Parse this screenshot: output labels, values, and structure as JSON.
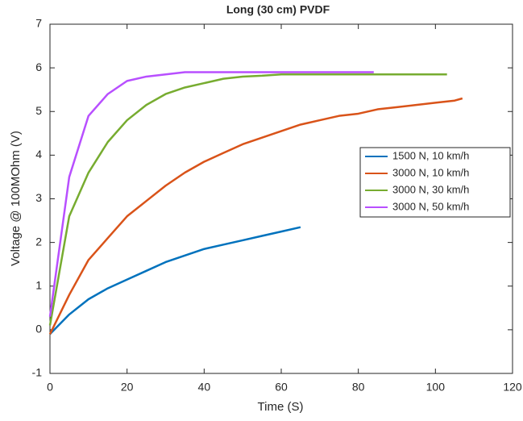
{
  "chart_data": {
    "type": "line",
    "title": "Long (30 cm) PVDF",
    "x_label": "Time (S)",
    "y_label": "Voltage @ 100MOhm (V)",
    "xlim": [
      0,
      120
    ],
    "xticks": [
      0,
      20,
      40,
      60,
      80,
      100,
      120
    ],
    "ylim": [
      -1,
      7
    ],
    "yticks": [
      -1,
      0,
      1,
      2,
      3,
      4,
      5,
      6,
      7
    ],
    "grid": false,
    "legend_position": "east",
    "series": [
      {
        "name": "1500 N, 10 km/h",
        "color": "#0072bd",
        "x": [
          0,
          5,
          10,
          15,
          20,
          25,
          30,
          35,
          40,
          45,
          50,
          55,
          60,
          65
        ],
        "values": [
          -0.1,
          0.35,
          0.7,
          0.95,
          1.15,
          1.35,
          1.55,
          1.7,
          1.85,
          1.95,
          2.05,
          2.15,
          2.25,
          2.35
        ]
      },
      {
        "name": "3000 N, 10 km/h",
        "color": "#d95319",
        "x": [
          0,
          5,
          10,
          15,
          20,
          25,
          30,
          35,
          40,
          45,
          50,
          55,
          60,
          65,
          70,
          75,
          80,
          85,
          90,
          95,
          100,
          105,
          107
        ],
        "values": [
          -0.1,
          0.8,
          1.6,
          2.1,
          2.6,
          2.95,
          3.3,
          3.6,
          3.85,
          4.05,
          4.25,
          4.4,
          4.55,
          4.7,
          4.8,
          4.9,
          4.95,
          5.05,
          5.1,
          5.15,
          5.2,
          5.25,
          5.3
        ]
      },
      {
        "name": "3000 N, 30 km/h",
        "color": "#77ac30",
        "x": [
          0,
          5,
          10,
          15,
          20,
          25,
          30,
          35,
          40,
          45,
          50,
          55,
          60,
          70,
          80,
          90,
          100,
          103
        ],
        "values": [
          0.1,
          2.6,
          3.6,
          4.3,
          4.8,
          5.15,
          5.4,
          5.55,
          5.65,
          5.75,
          5.8,
          5.82,
          5.85,
          5.85,
          5.85,
          5.85,
          5.85,
          5.85
        ]
      },
      {
        "name": "3000 N, 50 km/h",
        "color": "#b84fff",
        "x": [
          0,
          5,
          10,
          15,
          20,
          25,
          30,
          35,
          40,
          50,
          60,
          70,
          80,
          84
        ],
        "values": [
          0.3,
          3.5,
          4.9,
          5.4,
          5.7,
          5.8,
          5.85,
          5.9,
          5.9,
          5.9,
          5.9,
          5.9,
          5.9,
          5.9
        ]
      }
    ]
  }
}
